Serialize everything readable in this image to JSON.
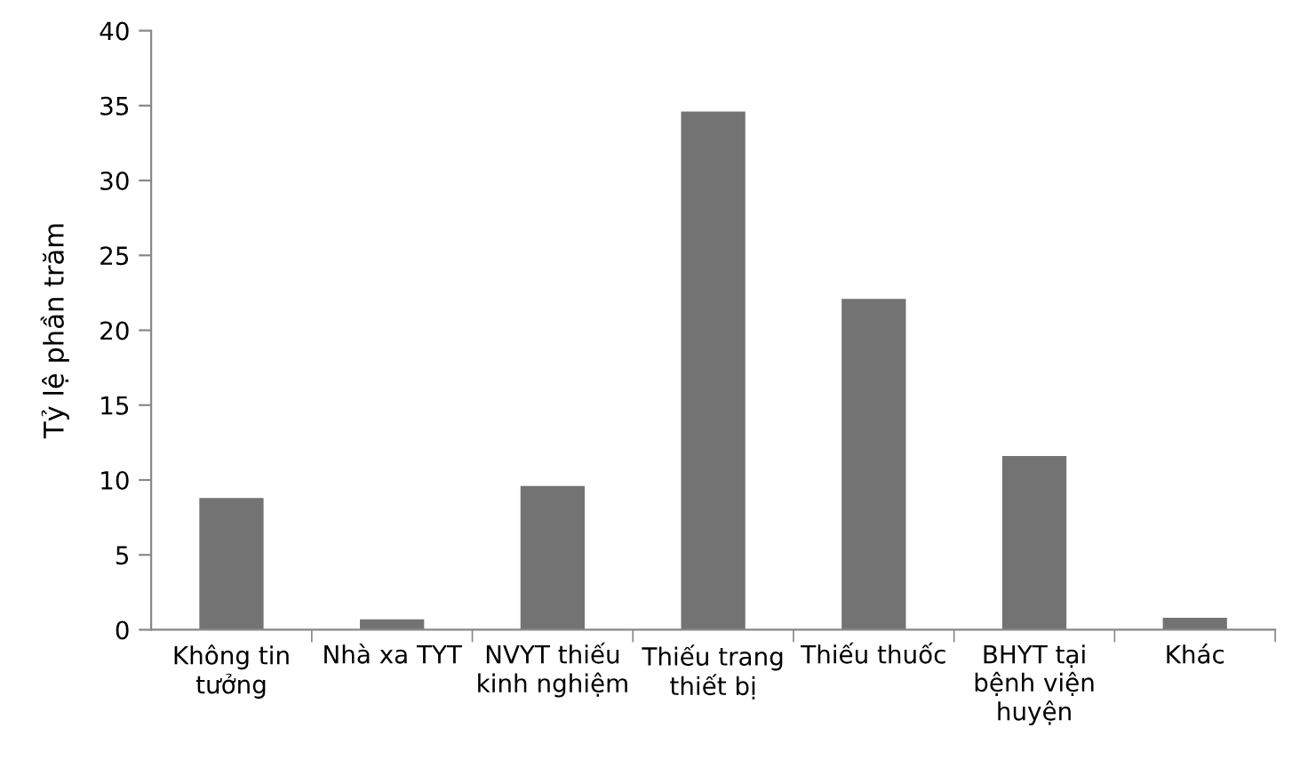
{
  "chart_data": {
    "type": "bar",
    "ylabel": "Tỷ lệ phần trăm",
    "categories": [
      "Không tin\ntưởng",
      "Nhà xa TYT",
      "NVYT thiếu\nkinh nghiệm",
      "Thiếu trang\nthiết bị",
      "Thiếu thuốc",
      "BHYT tại\nbệnh viện\nhuyện",
      "Khác"
    ],
    "values": [
      8.8,
      0.7,
      9.6,
      34.6,
      22.1,
      11.6,
      0.8
    ],
    "color": "#737373",
    "ylim": [
      0,
      40
    ],
    "yticks": [
      0,
      5,
      10,
      15,
      20,
      25,
      30,
      35,
      40
    ],
    "grid": false,
    "legend": false
  }
}
